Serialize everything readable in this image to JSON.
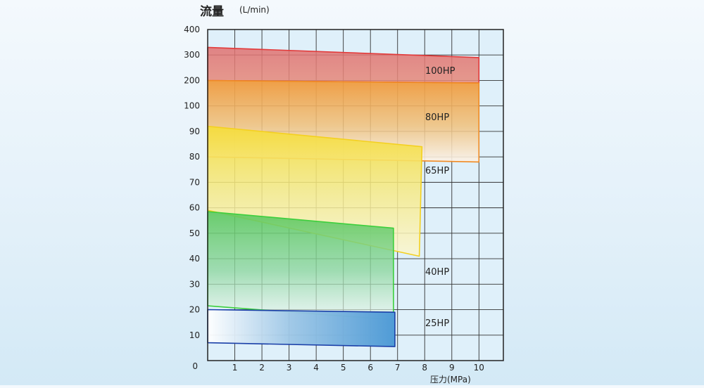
{
  "chart_data": {
    "type": "area",
    "ylabel": "流量",
    "yunit": "(L/min)",
    "xlabel": "压力(MPa)",
    "x_ticks": [
      "1",
      "2",
      "3",
      "4",
      "5",
      "6",
      "7",
      "8",
      "9",
      "10"
    ],
    "x_origin_label": "0",
    "y_ticks": [
      "10",
      "20",
      "30",
      "40",
      "50",
      "60",
      "70",
      "80",
      "90",
      "100",
      "200",
      "300",
      "400"
    ],
    "y_origin_label": "0",
    "xlim": [
      0,
      10.9
    ],
    "y_scale": "piecewise (step 10 up to 100, then step 100 up to 400)",
    "grid": true,
    "series": [
      {
        "name": "100HP",
        "color": "#e23a3a",
        "polygon_x": [
          0,
          10,
          10,
          0
        ],
        "polygon_y": [
          330,
          290,
          190,
          200
        ]
      },
      {
        "name": "80HP",
        "color": "#f08a22",
        "polygon_x": [
          0,
          10,
          10,
          0
        ],
        "polygon_y": [
          200,
          190,
          78,
          80
        ]
      },
      {
        "name": "65HP",
        "color": "#f4d020",
        "polygon_x": [
          0,
          7.9,
          7.8,
          0
        ],
        "polygon_y": [
          92,
          84,
          41,
          59
        ]
      },
      {
        "name": "40HP",
        "color": "#3ccf3c",
        "polygon_x": [
          0,
          6.85,
          6.85,
          0
        ],
        "polygon_y": [
          58.5,
          52,
          16,
          21.5
        ]
      },
      {
        "name": "25HP",
        "color": "#1a3fa8",
        "polygon_x": [
          0,
          6.9,
          6.9,
          0
        ],
        "polygon_y": [
          20,
          19,
          5.5,
          7
        ]
      }
    ]
  }
}
